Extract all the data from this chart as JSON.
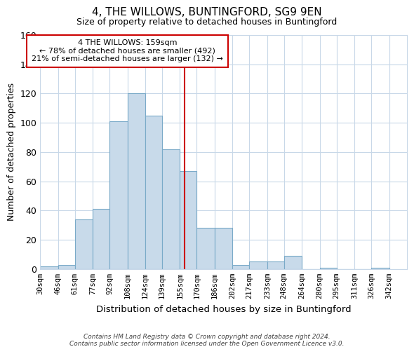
{
  "title": "4, THE WILLOWS, BUNTINGFORD, SG9 9EN",
  "subtitle": "Size of property relative to detached houses in Buntingford",
  "xlabel": "Distribution of detached houses by size in Buntingford",
  "ylabel": "Number of detached properties",
  "bin_labels": [
    "30sqm",
    "46sqm",
    "61sqm",
    "77sqm",
    "92sqm",
    "108sqm",
    "124sqm",
    "139sqm",
    "155sqm",
    "170sqm",
    "186sqm",
    "202sqm",
    "217sqm",
    "233sqm",
    "248sqm",
    "264sqm",
    "280sqm",
    "295sqm",
    "311sqm",
    "326sqm",
    "342sqm"
  ],
  "bin_edges": [
    30,
    46,
    61,
    77,
    92,
    108,
    124,
    139,
    155,
    170,
    186,
    202,
    217,
    233,
    248,
    264,
    280,
    295,
    311,
    326,
    342
  ],
  "bar_heights": [
    2,
    3,
    34,
    41,
    101,
    120,
    105,
    82,
    67,
    28,
    28,
    3,
    5,
    5,
    9,
    0,
    1,
    0,
    0,
    1
  ],
  "bar_color": "#c8daea",
  "bar_edgecolor": "#7aaac8",
  "property_size": 159,
  "vline_color": "#cc0000",
  "annotation_title": "4 THE WILLOWS: 159sqm",
  "annotation_line1": "← 78% of detached houses are smaller (492)",
  "annotation_line2": "21% of semi-detached houses are larger (132) →",
  "annotation_box_edgecolor": "#cc0000",
  "ylim": [
    0,
    160
  ],
  "yticks": [
    0,
    20,
    40,
    60,
    80,
    100,
    120,
    140,
    160
  ],
  "footer_line1": "Contains HM Land Registry data © Crown copyright and database right 2024.",
  "footer_line2": "Contains public sector information licensed under the Open Government Licence v3.0.",
  "background_color": "#ffffff",
  "grid_color": "#c8d8e8"
}
